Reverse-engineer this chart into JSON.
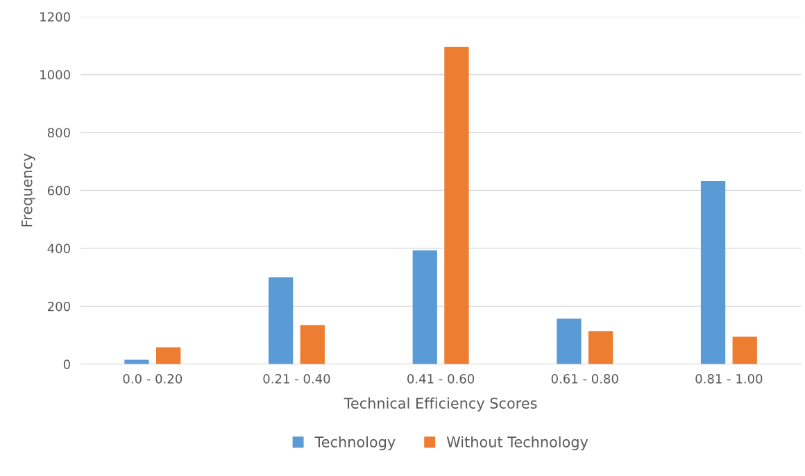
{
  "chart_data": {
    "type": "bar",
    "xlabel": "Technical Efficiency Scores",
    "ylabel": "Frequency",
    "categories": [
      "0.0 - 0.20",
      "0.21 - 0.40",
      "0.41 - 0.60",
      "0.61 - 0.80",
      "0.81 - 1.00"
    ],
    "series": [
      {
        "name": "Technology",
        "color": "#5b9bd5",
        "values": [
          15,
          300,
          393,
          157,
          632
        ]
      },
      {
        "name": "Without Technology",
        "color": "#ed7d31",
        "values": [
          58,
          135,
          1095,
          114,
          95
        ]
      }
    ],
    "ylim": [
      0,
      1200
    ],
    "yticks": [
      0,
      200,
      400,
      600,
      800,
      1000,
      1200
    ],
    "grid": "y",
    "legend": "bottom"
  }
}
